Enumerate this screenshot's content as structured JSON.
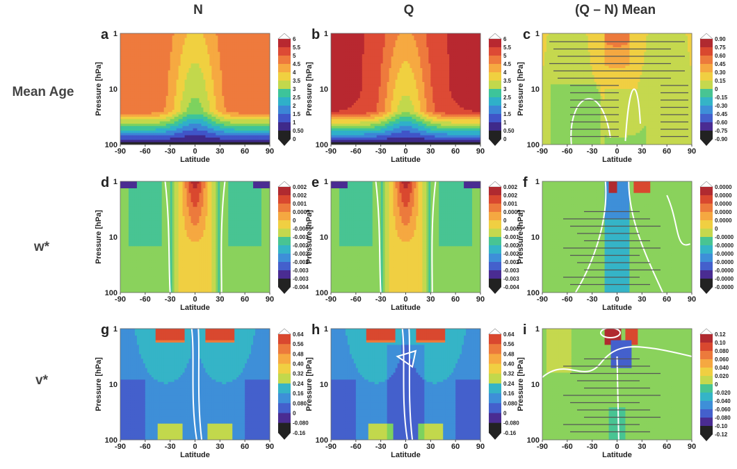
{
  "column_titles": [
    "N",
    "Q",
    "(Q – N) Mean"
  ],
  "row_titles": [
    "Mean Age",
    "w*",
    "v*"
  ],
  "axis": {
    "xlabel": "Latitude",
    "ylabel": "Pressure [hPa]",
    "xticks": [
      "-90",
      "-60",
      "-30",
      "0",
      "30",
      "60",
      "90"
    ],
    "yticks": [
      "1",
      "10",
      "100"
    ]
  },
  "colorbars": {
    "age": [
      "6",
      "5.5",
      "5",
      "4.5",
      "4",
      "3.5",
      "3",
      "2.5",
      "2",
      "1.5",
      "1",
      "0.50",
      "0"
    ],
    "age_diff": [
      "0.90",
      "0.75",
      "0.60",
      "0.45",
      "0.30",
      "0.15",
      "0",
      "-0.15",
      "-0.30",
      "-0.45",
      "-0.60",
      "-0.75",
      "-0.90"
    ],
    "w": [
      "0.002",
      "0.002",
      "0.001",
      "0.0005",
      "0",
      "-0.0005",
      "-0.001",
      "-0.002",
      "-0.002",
      "-0.002",
      "-0.003",
      "-0.003",
      "-0.004"
    ],
    "w_diff": [
      "0.0000",
      "0.0000",
      "0.0000",
      "0.0000",
      "0.0000",
      "0",
      "-0.0000",
      "-0.0000",
      "-0.0000",
      "-0.0000",
      "-0.0000",
      "-0.0000",
      "-0.0000"
    ],
    "v": [
      "0.64",
      "0.56",
      "0.48",
      "0.40",
      "0.32",
      "0.24",
      "0.16",
      "0.080",
      "0",
      "-0.080",
      "-0.16"
    ],
    "v_diff": [
      "0.12",
      "0.10",
      "0.080",
      "0.060",
      "0.040",
      "0.020",
      "0",
      "-0.020",
      "-0.040",
      "-0.060",
      "-0.080",
      "-0.10",
      "-0.12"
    ]
  },
  "chart_data": [
    {
      "panel": "a",
      "type": "heatmap",
      "row": "Mean Age",
      "column": "N",
      "x": [
        -90,
        -60,
        -30,
        0,
        30,
        60,
        90
      ],
      "y": [
        1,
        10,
        100
      ],
      "ylim": [
        100,
        1
      ],
      "xlim": [
        -90,
        90
      ],
      "xlabel": "Latitude",
      "ylabel": "Pressure [hPa]",
      "contour_levels": [
        0,
        0.5,
        1,
        1.5,
        2,
        2.5,
        3,
        3.5,
        4,
        4.5,
        5,
        5.5,
        6
      ]
    },
    {
      "panel": "b",
      "type": "heatmap",
      "row": "Mean Age",
      "column": "Q",
      "x": [
        -90,
        -60,
        -30,
        0,
        30,
        60,
        90
      ],
      "y": [
        1,
        10,
        100
      ],
      "ylim": [
        100,
        1
      ],
      "xlim": [
        -90,
        90
      ],
      "xlabel": "Latitude",
      "ylabel": "Pressure [hPa]",
      "contour_levels": [
        0,
        0.5,
        1,
        1.5,
        2,
        2.5,
        3,
        3.5,
        4,
        4.5,
        5,
        5.5,
        6
      ]
    },
    {
      "panel": "c",
      "type": "heatmap",
      "row": "Mean Age",
      "column": "(Q – N) Mean",
      "x": [
        -90,
        -60,
        -30,
        0,
        30,
        60,
        90
      ],
      "y": [
        1,
        10,
        100
      ],
      "ylim": [
        100,
        1
      ],
      "xlim": [
        -90,
        90
      ],
      "xlabel": "Latitude",
      "ylabel": "Pressure [hPa]",
      "contour_levels": [
        -0.9,
        -0.75,
        -0.6,
        -0.45,
        -0.3,
        -0.15,
        0,
        0.15,
        0.3,
        0.45,
        0.6,
        0.75,
        0.9
      ]
    },
    {
      "panel": "d",
      "type": "heatmap",
      "row": "w*",
      "column": "N",
      "x": [
        -90,
        -60,
        -30,
        0,
        30,
        60,
        90
      ],
      "y": [
        1,
        10,
        100
      ],
      "ylim": [
        100,
        1
      ],
      "xlim": [
        -90,
        90
      ],
      "xlabel": "Latitude",
      "ylabel": "Pressure [hPa]"
    },
    {
      "panel": "e",
      "type": "heatmap",
      "row": "w*",
      "column": "Q",
      "x": [
        -90,
        -60,
        -30,
        0,
        30,
        60,
        90
      ],
      "y": [
        1,
        10,
        100
      ],
      "ylim": [
        100,
        1
      ],
      "xlim": [
        -90,
        90
      ],
      "xlabel": "Latitude",
      "ylabel": "Pressure [hPa]"
    },
    {
      "panel": "f",
      "type": "heatmap",
      "row": "w*",
      "column": "(Q – N) Mean",
      "x": [
        -90,
        -60,
        -30,
        0,
        30,
        60,
        90
      ],
      "y": [
        1,
        10,
        100
      ],
      "ylim": [
        100,
        1
      ],
      "xlim": [
        -90,
        90
      ],
      "xlabel": "Latitude",
      "ylabel": "Pressure [hPa]"
    },
    {
      "panel": "g",
      "type": "heatmap",
      "row": "v*",
      "column": "N",
      "x": [
        -90,
        -60,
        -30,
        0,
        30,
        60,
        90
      ],
      "y": [
        1,
        10,
        100
      ],
      "ylim": [
        100,
        1
      ],
      "xlim": [
        -90,
        90
      ],
      "xlabel": "Latitude",
      "ylabel": "Pressure [hPa]",
      "contour_levels": [
        -0.16,
        -0.08,
        0,
        0.08,
        0.16,
        0.24,
        0.32,
        0.4,
        0.48,
        0.56,
        0.64
      ]
    },
    {
      "panel": "h",
      "type": "heatmap",
      "row": "v*",
      "column": "Q",
      "x": [
        -90,
        -60,
        -30,
        0,
        30,
        60,
        90
      ],
      "y": [
        1,
        10,
        100
      ],
      "ylim": [
        100,
        1
      ],
      "xlim": [
        -90,
        90
      ],
      "xlabel": "Latitude",
      "ylabel": "Pressure [hPa]",
      "contour_levels": [
        -0.16,
        -0.08,
        0,
        0.08,
        0.16,
        0.24,
        0.32,
        0.4,
        0.48,
        0.56,
        0.64
      ]
    },
    {
      "panel": "i",
      "type": "heatmap",
      "row": "v*",
      "column": "(Q – N) Mean",
      "x": [
        -90,
        -60,
        -30,
        0,
        30,
        60,
        90
      ],
      "y": [
        1,
        10,
        100
      ],
      "ylim": [
        100,
        1
      ],
      "xlim": [
        -90,
        90
      ],
      "xlabel": "Latitude",
      "ylabel": "Pressure [hPa]",
      "contour_levels": [
        -0.12,
        -0.1,
        -0.08,
        -0.06,
        -0.04,
        -0.02,
        0,
        0.02,
        0.04,
        0.06,
        0.08,
        0.1,
        0.12
      ]
    }
  ],
  "palettes": {
    "age": [
      "#222222",
      "#3f2a8a",
      "#4055c8",
      "#3c86d6",
      "#2fb0c9",
      "#3dc49a",
      "#7dd25e",
      "#c2d84c",
      "#f0d040",
      "#f6a941",
      "#ee7a3d",
      "#dd4a35",
      "#b82830"
    ],
    "diff": [
      "#222222",
      "#4a2c92",
      "#4460cc",
      "#3e8fd8",
      "#35b4c7",
      "#48c493",
      "#8ad25c",
      "#c5d84e",
      "#f0cf42",
      "#f5a841",
      "#ec7a3c",
      "#d9482f",
      "#b02a30"
    ],
    "v": [
      "#222222",
      "#4a2c92",
      "#4460cc",
      "#3e8fd8",
      "#35b4c7",
      "#7dd25e",
      "#c2d84c",
      "#f0cf42",
      "#f6a941",
      "#ec7a3c",
      "#d9482f"
    ]
  },
  "panel_labels": [
    "a",
    "b",
    "c",
    "d",
    "e",
    "f",
    "g",
    "h",
    "i"
  ]
}
